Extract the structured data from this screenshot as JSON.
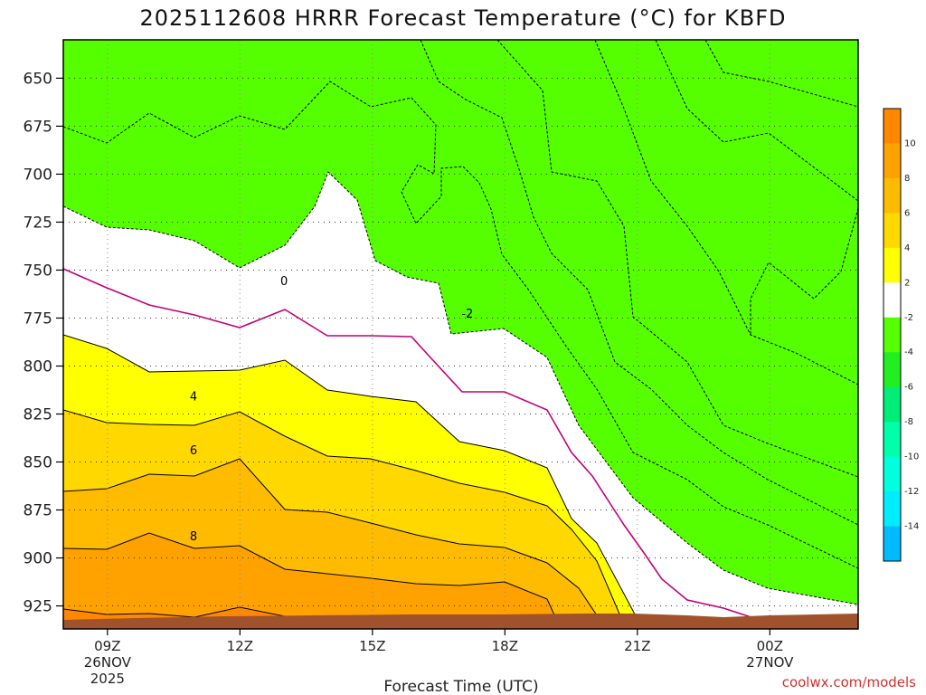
{
  "chart_data": {
    "type": "heatmap",
    "title": "2025112608 HRRR Forecast Temperature (°C) for KBFD",
    "xlabel": "Forecast Time (UTC)",
    "ylabel": "",
    "y_scale": "pressure",
    "ylim": [
      937,
      630
    ],
    "xlim": [
      "2025-11-26 08Z",
      "2025-11-27 02Z"
    ],
    "grid": true,
    "x_ticks": [
      {
        "label": "09Z",
        "sub1": "26NOV",
        "sub2": "2025",
        "hour": 9
      },
      {
        "label": "12Z",
        "sub1": "",
        "sub2": "",
        "hour": 12
      },
      {
        "label": "15Z",
        "sub1": "",
        "sub2": "",
        "hour": 15
      },
      {
        "label": "18Z",
        "sub1": "",
        "sub2": "",
        "hour": 18
      },
      {
        "label": "21Z",
        "sub1": "",
        "sub2": "",
        "hour": 21
      },
      {
        "label": "00Z",
        "sub1": "27NOV",
        "sub2": "",
        "hour": 24
      }
    ],
    "y_ticks": [
      "650",
      "675",
      "700",
      "725",
      "750",
      "775",
      "800",
      "825",
      "850",
      "875",
      "900",
      "925"
    ],
    "colorbar": {
      "placement": "right",
      "ticks": [
        "10",
        "8",
        "6",
        "4",
        "2",
        "-2",
        "-4",
        "-6",
        "-8",
        "-10",
        "-12",
        "-14"
      ],
      "colors": [
        "#ff8800",
        "#ffa200",
        "#ffbb00",
        "#ffd800",
        "#ffff00",
        "#ffffff",
        "#55ff00",
        "#22ee22",
        "#00ee77",
        "#00ffaa",
        "#00ffdd",
        "#00ecff",
        "#00bbff"
      ]
    },
    "contour_labels": [
      {
        "text": "0",
        "hour": 13.0,
        "pressure": 756
      },
      {
        "text": "-2",
        "hour": 17.15,
        "pressure": 773
      },
      {
        "text": "4",
        "hour": 10.95,
        "pressure": 816
      },
      {
        "text": "6",
        "hour": 10.95,
        "pressure": 844
      },
      {
        "text": "8",
        "hour": 10.95,
        "pressure": 889
      }
    ],
    "ground_color": "#a0522d"
  },
  "watermark": "coolwx.com/models"
}
